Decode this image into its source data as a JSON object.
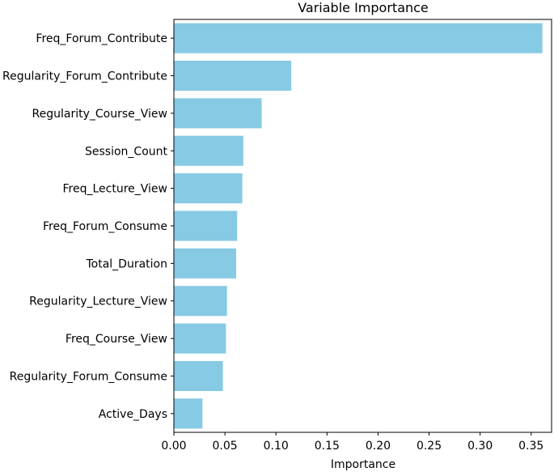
{
  "chart_data": {
    "type": "bar",
    "orientation": "horizontal",
    "title": "Variable Importance",
    "xlabel": "Importance",
    "ylabel": "",
    "xlim": [
      0.0,
      0.37
    ],
    "xticks": [
      "0.00",
      "0.05",
      "0.10",
      "0.15",
      "0.20",
      "0.25",
      "0.30",
      "0.35"
    ],
    "categories": [
      "Freq_Forum_Contribute",
      "Regularity_Forum_Contribute",
      "Regularity_Course_View",
      "Session_Count",
      "Freq_Lecture_View",
      "Freq_Forum_Consume",
      "Total_Duration",
      "Regularity_Lecture_View",
      "Freq_Course_View",
      "Regularity_Forum_Consume",
      "Active_Days"
    ],
    "values": [
      0.361,
      0.115,
      0.086,
      0.068,
      0.067,
      0.062,
      0.061,
      0.052,
      0.051,
      0.048,
      0.028
    ],
    "bar_color": "#87CAE4",
    "grid": false,
    "legend": "none"
  }
}
